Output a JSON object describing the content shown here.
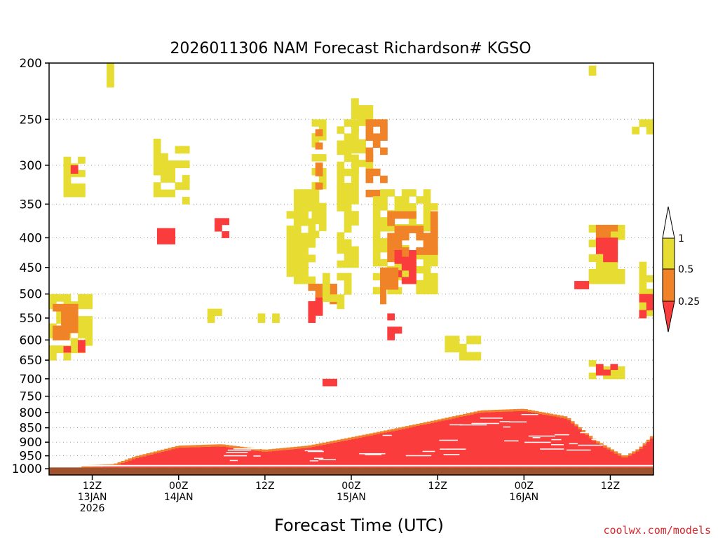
{
  "chart_data": {
    "type": "heatmap",
    "title": "2026011306 NAM Forecast Richardson# KGSO",
    "xlabel": "Forecast Time (UTC)",
    "ylabel": "",
    "y_axis": {
      "scale": "log-pressure",
      "inverted": true,
      "range": [
        1025,
        200
      ],
      "ticks": [
        200,
        250,
        300,
        350,
        400,
        450,
        500,
        550,
        600,
        650,
        700,
        750,
        800,
        850,
        900,
        950,
        1000
      ],
      "gridlines": [
        250,
        300,
        350,
        400,
        450,
        500,
        550,
        600,
        650,
        700,
        750,
        800,
        850,
        900,
        950,
        1000
      ],
      "grid_style": "dotted"
    },
    "x_axis": {
      "range_hours": [
        0,
        84
      ],
      "ticks": [
        {
          "hour": 6,
          "lines": [
            "12Z",
            "13JAN",
            "2026"
          ]
        },
        {
          "hour": 18,
          "lines": [
            "00Z",
            "14JAN"
          ]
        },
        {
          "hour": 30,
          "lines": [
            "12Z"
          ]
        },
        {
          "hour": 42,
          "lines": [
            "00Z",
            "15JAN"
          ]
        },
        {
          "hour": 54,
          "lines": [
            "12Z"
          ]
        },
        {
          "hour": 66,
          "lines": [
            "00Z",
            "16JAN"
          ]
        },
        {
          "hour": 78,
          "lines": [
            "12Z"
          ]
        }
      ]
    },
    "ground": {
      "color": "#a0522d",
      "top_pressure": 995
    },
    "colorbar": {
      "labels": [
        "1",
        "0.5",
        "0.25"
      ],
      "bins": [
        {
          "range": "> 1",
          "color": "#ffffff"
        },
        {
          "range": "0.5 - 1",
          "color": "#e6dc32"
        },
        {
          "range": "0.25 - 0.5",
          "color": "#f08228"
        },
        {
          "range": "< 0.25",
          "color": "#fa3c3c"
        }
      ]
    },
    "regions": [
      {
        "category": "0.5 - 1",
        "x": [
          0,
          6
        ],
        "p": [
          500,
          650
        ]
      },
      {
        "category": "0.25 - 0.5",
        "x": [
          0.5,
          4
        ],
        "p": [
          520,
          600
        ]
      },
      {
        "category": "< 0.25",
        "x": [
          2,
          5
        ],
        "p": [
          600,
          630
        ]
      },
      {
        "category": "0.5 - 1",
        "x": [
          2,
          5
        ],
        "p": [
          290,
          340
        ]
      },
      {
        "category": "< 0.25",
        "x": [
          3,
          4
        ],
        "p": [
          300,
          320
        ]
      },
      {
        "category": "0.5 - 1",
        "x": [
          14.5,
          19.5
        ],
        "p": [
          270,
          350
        ]
      },
      {
        "category": "< 0.25",
        "x": [
          15,
          17.5
        ],
        "p": [
          385,
          410
        ]
      },
      {
        "category": "< 0.25",
        "x": [
          23,
          25
        ],
        "p": [
          370,
          400
        ]
      },
      {
        "category": "0.5 - 1",
        "x": [
          33,
          37
        ],
        "p": [
          330,
          480
        ]
      },
      {
        "category": "0.5 - 1",
        "x": [
          36.5,
          38.5
        ],
        "p": [
          250,
          400
        ]
      },
      {
        "category": "0.25 - 0.5",
        "x": [
          37,
          38
        ],
        "p": [
          260,
          330
        ]
      },
      {
        "category": "0.5 - 1",
        "x": [
          40,
          43
        ],
        "p": [
          250,
          450
        ]
      },
      {
        "category": "0.5 - 1",
        "x": [
          42,
          45
        ],
        "p": [
          230,
          310
        ]
      },
      {
        "category": "0.25 - 0.5",
        "x": [
          44,
          47
        ],
        "p": [
          250,
          340
        ]
      },
      {
        "category": "0.5 - 1",
        "x": [
          45,
          54
        ],
        "p": [
          330,
          500
        ]
      },
      {
        "category": "0.25 - 0.5",
        "x": [
          47,
          54
        ],
        "p": [
          360,
          440
        ]
      },
      {
        "category": "< 0.25",
        "x": [
          48,
          51
        ],
        "p": [
          420,
          480
        ]
      },
      {
        "category": "0.25 - 0.5",
        "x": [
          46,
          48.5
        ],
        "p": [
          450,
          520
        ]
      },
      {
        "category": "< 0.25",
        "x": [
          47,
          49
        ],
        "p": [
          540,
          600
        ]
      },
      {
        "category": "< 0.25",
        "x": [
          36,
          38
        ],
        "p": [
          500,
          560
        ]
      },
      {
        "category": "0.25 - 0.5",
        "x": [
          36,
          40
        ],
        "p": [
          480,
          520
        ]
      },
      {
        "category": "0.5 - 1",
        "x": [
          38,
          42
        ],
        "p": [
          460,
          530
        ]
      },
      {
        "category": "0.5 - 1",
        "x": [
          75,
          80
        ],
        "p": [
          380,
          480
        ]
      },
      {
        "category": "0.25 - 0.5",
        "x": [
          76,
          79
        ],
        "p": [
          380,
          420
        ]
      },
      {
        "category": "< 0.25",
        "x": [
          76,
          79
        ],
        "p": [
          400,
          440
        ]
      },
      {
        "category": "< 0.25",
        "x": [
          73,
          75
        ],
        "p": [
          460,
          490
        ]
      },
      {
        "category": "0.5 - 1",
        "x": [
          82,
          84
        ],
        "p": [
          440,
          560
        ]
      },
      {
        "category": "< 0.25",
        "x": [
          82,
          84
        ],
        "p": [
          500,
          550
        ]
      },
      {
        "category": "0.5 - 1",
        "x": [
          81,
          84
        ],
        "p": [
          250,
          265
        ]
      },
      {
        "category": "0.5 - 1",
        "x": [
          75,
          78
        ],
        "p": [
          202,
          210
        ]
      },
      {
        "category": "0.5 - 1",
        "x": [
          75,
          80
        ],
        "p": [
          650,
          700
        ]
      },
      {
        "category": "< 0.25",
        "x": [
          76,
          79
        ],
        "p": [
          660,
          690
        ]
      },
      {
        "category": "0.5 - 1",
        "x": [
          8,
          9
        ],
        "p": [
          200,
          220
        ]
      },
      {
        "category": "0.5 - 1",
        "x": [
          22,
          24
        ],
        "p": [
          530,
          560
        ]
      },
      {
        "category": "0.5 - 1",
        "x": [
          28,
          32
        ],
        "p": [
          540,
          560
        ]
      },
      {
        "category": "< 0.25",
        "x": [
          37,
          40
        ],
        "p": [
          700,
          720
        ]
      },
      {
        "category": "0.5 - 1",
        "x": [
          55,
          60
        ],
        "p": [
          590,
          650
        ]
      }
    ],
    "low_level_band": {
      "description": "Ri < 0.25 layer near surface deepening over time",
      "top_by_hour": [
        [
          0,
          1000
        ],
        [
          9,
          990
        ],
        [
          12,
          960
        ],
        [
          18,
          920
        ],
        [
          24,
          915
        ],
        [
          30,
          935
        ],
        [
          36,
          920
        ],
        [
          42,
          890
        ],
        [
          48,
          860
        ],
        [
          54,
          830
        ],
        [
          60,
          800
        ],
        [
          66,
          795
        ],
        [
          72,
          820
        ],
        [
          76,
          900
        ],
        [
          80,
          960
        ],
        [
          82,
          930
        ],
        [
          84,
          880
        ]
      ],
      "bottom_pressure": 995
    }
  },
  "credit": "coolwx.com/models"
}
